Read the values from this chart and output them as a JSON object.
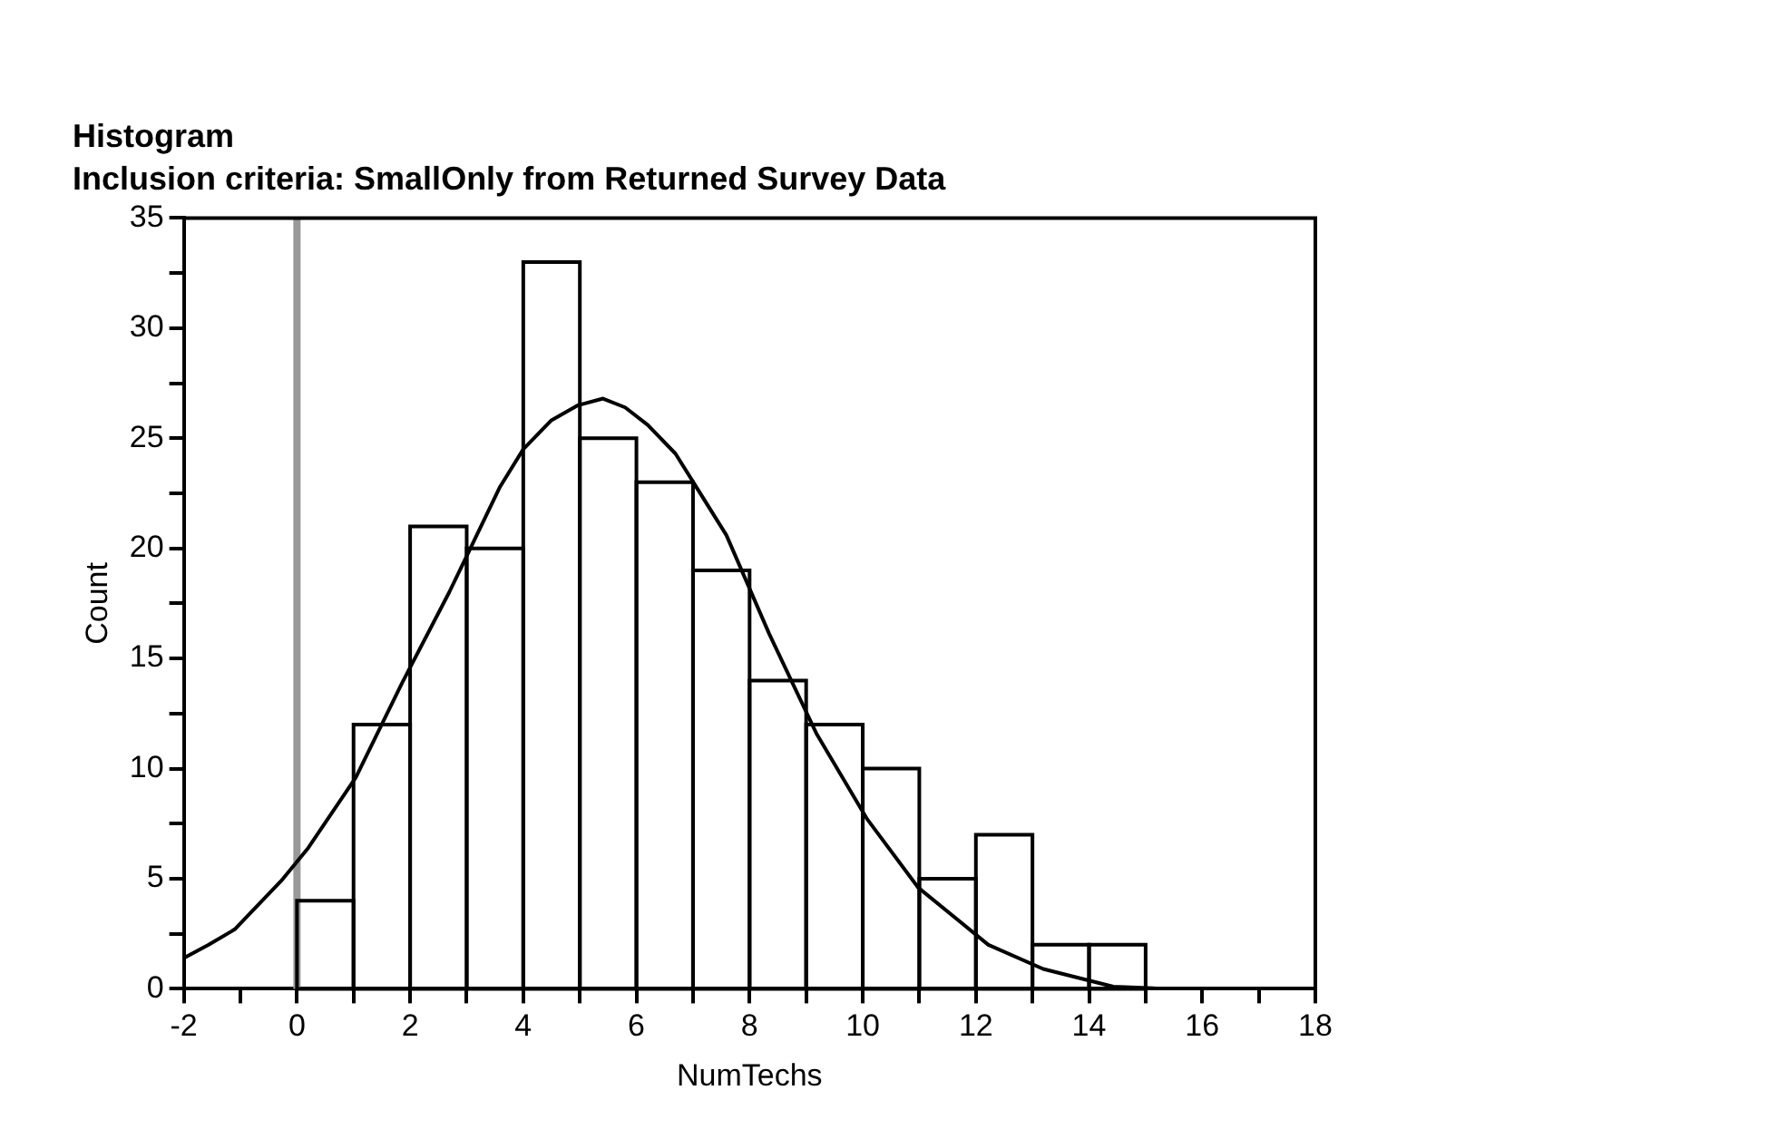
{
  "chart_data": {
    "type": "histogram",
    "title": "Histogram",
    "subtitle": "Inclusion criteria: SmallOnly from Returned Survey Data",
    "xlabel": "NumTechs",
    "ylabel": "Count",
    "bins": [
      0,
      1,
      2,
      3,
      4,
      5,
      6,
      7,
      8,
      9,
      10,
      11,
      12,
      13,
      14,
      15
    ],
    "values": [
      4,
      12,
      21,
      20,
      33,
      25,
      23,
      19,
      14,
      12,
      10,
      5,
      7,
      2,
      2
    ],
    "color": "#000000",
    "series": [
      {
        "type": "line",
        "color": "#000000",
        "x": [
          -2,
          -1.56,
          -1.1,
          -0.28,
          0.2,
          1.04,
          1.86,
          2.69,
          3.59,
          4.0,
          4.49,
          4.97,
          5.41,
          5.8,
          6.2,
          6.69,
          7.59,
          8.35,
          9.18,
          10.08,
          10.98,
          12.22,
          13.19,
          14.43,
          15.4,
          17.06
        ],
        "values": [
          1.4,
          2.0,
          2.7,
          4.9,
          6.4,
          9.6,
          13.9,
          18.0,
          22.8,
          24.5,
          25.8,
          26.5,
          26.8,
          26.4,
          25.6,
          24.3,
          20.6,
          16.1,
          11.6,
          7.7,
          4.6,
          2.0,
          0.9,
          0.1,
          0,
          0
        ]
      }
    ],
    "xlim": [
      -2,
      18
    ],
    "xticks": [
      -2,
      {
        "value": -1,
        "label": null
      },
      0,
      {
        "value": 1,
        "label": null
      },
      2,
      {
        "value": 3,
        "label": null
      },
      4,
      {
        "value": 5,
        "label": null
      },
      6,
      {
        "value": 7,
        "label": null
      },
      8,
      {
        "value": 9,
        "label": null
      },
      10,
      {
        "value": 11,
        "label": null
      },
      12,
      {
        "value": 13,
        "label": null
      },
      14,
      {
        "value": 15,
        "label": null
      },
      16,
      {
        "value": 17,
        "label": null
      },
      18
    ],
    "ylim": [
      0,
      35
    ],
    "yticks": [
      0,
      {
        "value": 2.5,
        "label": null
      },
      5,
      {
        "value": 7.5,
        "label": null
      },
      10,
      {
        "value": 12.5,
        "label": null
      },
      15,
      {
        "value": 17.5,
        "label": null
      },
      20,
      {
        "value": 22.5,
        "label": null
      },
      25,
      {
        "value": 27.5,
        "label": null
      },
      30,
      {
        "value": 32.5,
        "label": null
      },
      35
    ],
    "ref_lines": [
      {
        "axis": "x",
        "value": 0,
        "color": "#999999"
      }
    ],
    "grid": false,
    "legend": false,
    "marker": "none",
    "line_style": "solid"
  }
}
